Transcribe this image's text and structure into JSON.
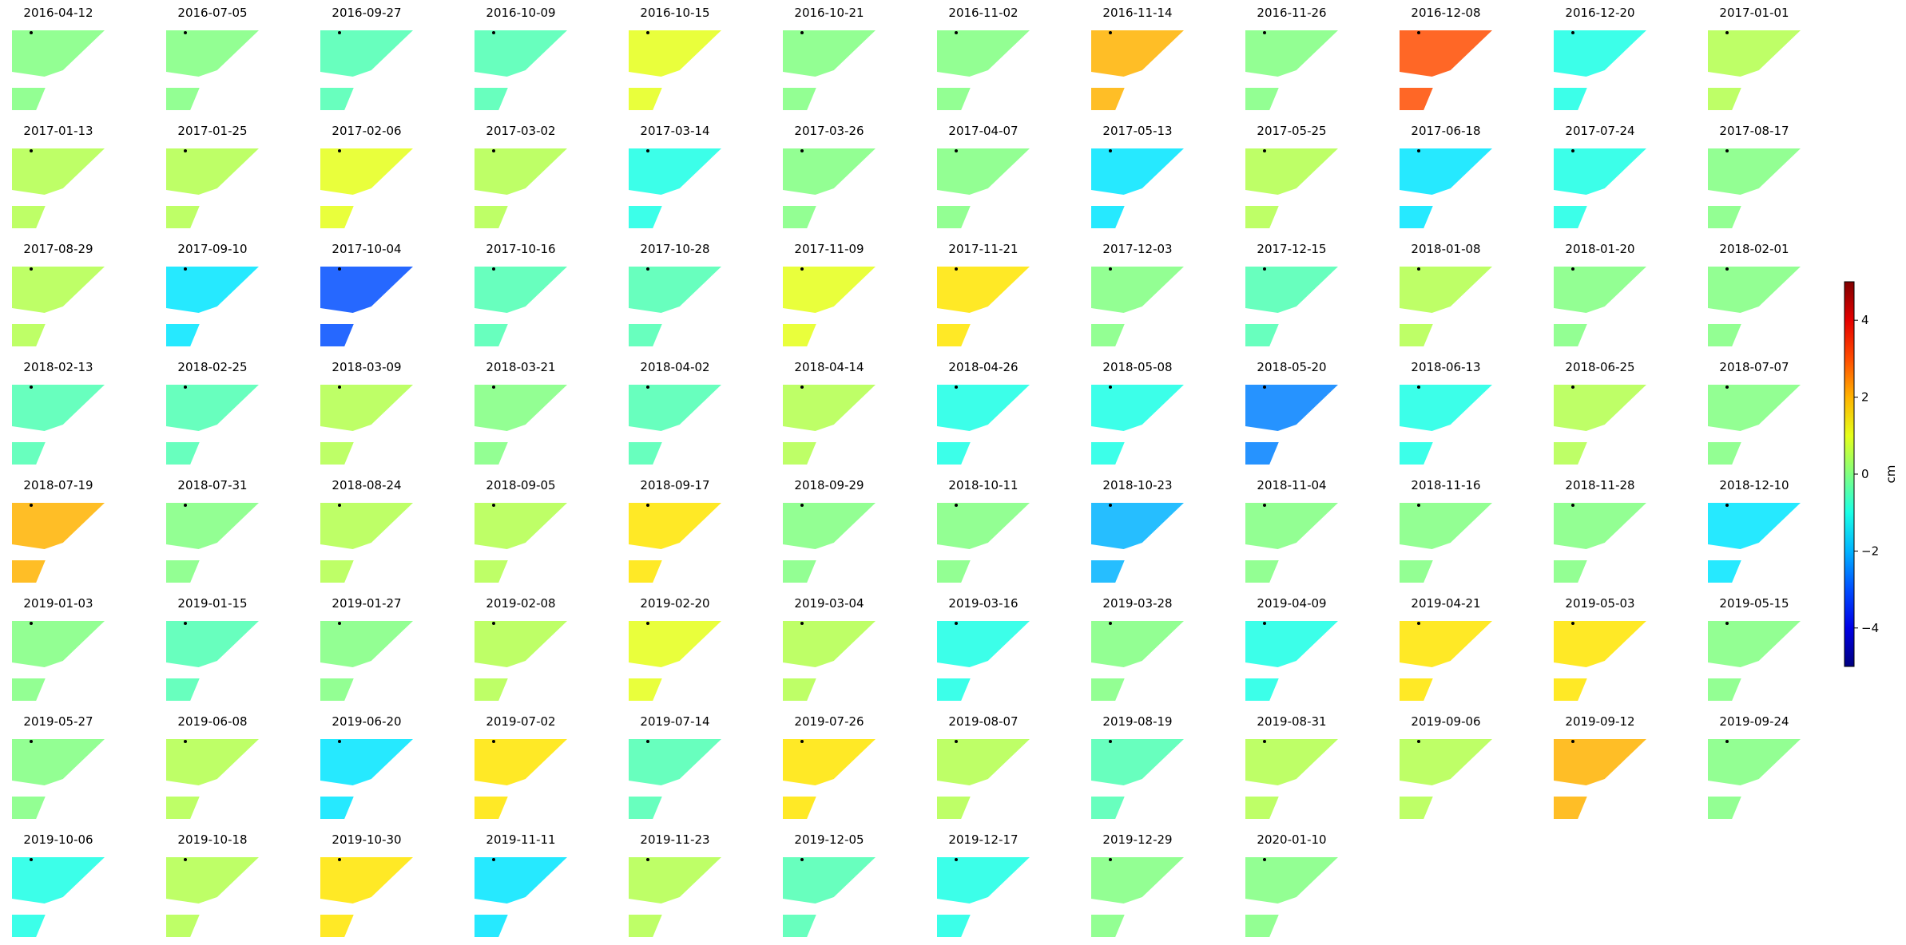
{
  "chart_data": {
    "type": "image_grid",
    "columns": 12,
    "titles": [
      "2016-04-12",
      "2016-07-05",
      "2016-09-27",
      "2016-10-09",
      "2016-10-15",
      "2016-10-21",
      "2016-11-02",
      "2016-11-14",
      "2016-11-26",
      "2016-12-08",
      "2016-12-20",
      "2017-01-01",
      "2017-01-13",
      "2017-01-25",
      "2017-02-06",
      "2017-03-02",
      "2017-03-14",
      "2017-03-26",
      "2017-04-07",
      "2017-05-13",
      "2017-05-25",
      "2017-06-18",
      "2017-07-24",
      "2017-08-17",
      "2017-08-29",
      "2017-09-10",
      "2017-10-04",
      "2017-10-16",
      "2017-10-28",
      "2017-11-09",
      "2017-11-21",
      "2017-12-03",
      "2017-12-15",
      "2018-01-08",
      "2018-01-20",
      "2018-02-01",
      "2018-02-13",
      "2018-02-25",
      "2018-03-09",
      "2018-03-21",
      "2018-04-02",
      "2018-04-14",
      "2018-04-26",
      "2018-05-08",
      "2018-05-20",
      "2018-06-13",
      "2018-06-25",
      "2018-07-07",
      "2018-07-19",
      "2018-07-31",
      "2018-08-24",
      "2018-09-05",
      "2018-09-17",
      "2018-09-29",
      "2018-10-11",
      "2018-10-23",
      "2018-11-04",
      "2018-11-16",
      "2018-11-28",
      "2018-12-10",
      "2019-01-03",
      "2019-01-15",
      "2019-01-27",
      "2019-02-08",
      "2019-02-20",
      "2019-03-04",
      "2019-03-16",
      "2019-03-28",
      "2019-04-09",
      "2019-04-21",
      "2019-05-03",
      "2019-05-15",
      "2019-05-27",
      "2019-06-08",
      "2019-06-20",
      "2019-07-02",
      "2019-07-14",
      "2019-07-26",
      "2019-08-07",
      "2019-08-19",
      "2019-08-31",
      "2019-09-06",
      "2019-09-12",
      "2019-09-24",
      "2019-10-06",
      "2019-10-18",
      "2019-10-30",
      "2019-11-11",
      "2019-11-23",
      "2019-12-05",
      "2019-12-17",
      "2019-12-29",
      "2020-01-10"
    ],
    "values": [
      0,
      0,
      -0.5,
      -0.5,
      1,
      0,
      0,
      2,
      0,
      3,
      -1,
      0.5,
      0.5,
      0.5,
      1,
      0.5,
      -1,
      0,
      0,
      -1.5,
      0.5,
      -1.5,
      -1,
      0,
      0.5,
      -1.5,
      -3,
      -0.5,
      -0.5,
      1,
      1.5,
      0,
      -0.5,
      0.5,
      0,
      0,
      -0.5,
      -0.5,
      0.5,
      0,
      -0.5,
      0.5,
      -1,
      -1,
      -2.5,
      -1,
      0.5,
      0,
      2,
      0,
      0.5,
      0.5,
      1.5,
      0,
      0,
      -2,
      0,
      0,
      0,
      -1.5,
      0,
      -0.5,
      0,
      0.5,
      1,
      0.5,
      -1,
      0,
      -1,
      1.5,
      1.5,
      0,
      0,
      0.5,
      -1.5,
      1.5,
      -0.5,
      1.5,
      0.5,
      -0.5,
      0.5,
      0.5,
      2,
      0,
      -1,
      0.5,
      1.5,
      -1.5,
      0.5,
      -0.5,
      -1,
      0,
      0
    ],
    "colorbar": {
      "label": "cm",
      "colormap": "jet",
      "lim": [
        -5,
        5
      ],
      "ticks": [
        {
          "value": -4,
          "label": "−4"
        },
        {
          "value": -2,
          "label": "−2"
        },
        0,
        2,
        4
      ]
    }
  }
}
